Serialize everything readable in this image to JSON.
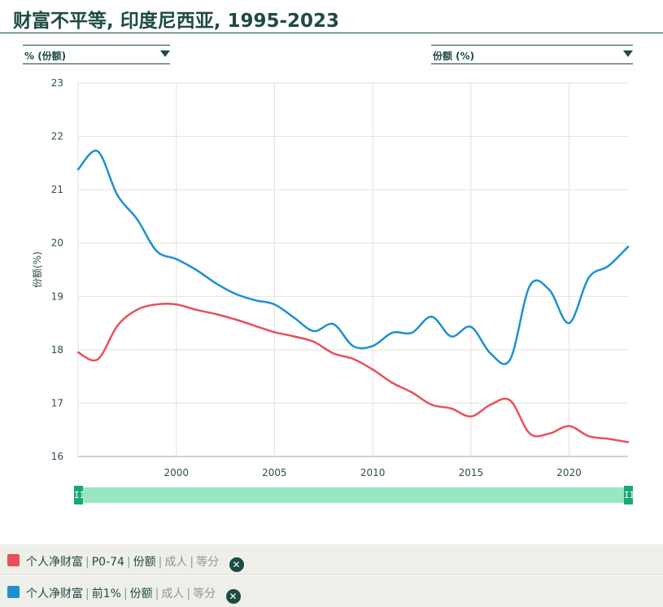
{
  "title": "财富不平等, 印度尼西亚, 1995-2023",
  "controls": {
    "unit_label": "% (份额)",
    "measure_label": "份额 (%)"
  },
  "slider": {
    "handle_glyph": "II"
  },
  "chart_data": {
    "type": "line",
    "title": "",
    "xlabel": "",
    "ylabel": "份额(%)",
    "xlim": [
      1995,
      2023
    ],
    "ylim": [
      16,
      23
    ],
    "xticks": [
      2000,
      2005,
      2010,
      2015,
      2020
    ],
    "yticks": [
      16,
      17,
      18,
      19,
      20,
      21,
      22,
      23
    ],
    "grid": true,
    "series": [
      {
        "name": "个人净财富 | P0-74 | 份额 | 成人 | 等分",
        "color": "#e8505b",
        "x": [
          1995,
          1996,
          1997,
          1998,
          1999,
          2000,
          2001,
          2002,
          2003,
          2004,
          2005,
          2006,
          2007,
          2008,
          2009,
          2010,
          2011,
          2012,
          2013,
          2014,
          2015,
          2016,
          2017,
          2018,
          2019,
          2020,
          2021,
          2022,
          2023
        ],
        "y": [
          17.95,
          17.82,
          18.45,
          18.75,
          18.85,
          18.85,
          18.75,
          18.67,
          18.57,
          18.45,
          18.33,
          18.25,
          18.15,
          17.93,
          17.83,
          17.63,
          17.38,
          17.2,
          16.97,
          16.9,
          16.75,
          16.97,
          17.05,
          16.43,
          16.43,
          16.57,
          16.38,
          16.33,
          16.27
        ]
      },
      {
        "name": "个人净财富 | 前1% | 份额 | 成人 | 等分",
        "color": "#1e90d2",
        "x": [
          1995,
          1996,
          1997,
          1998,
          1999,
          2000,
          2001,
          2002,
          2003,
          2004,
          2005,
          2006,
          2007,
          2008,
          2009,
          2010,
          2011,
          2012,
          2013,
          2014,
          2015,
          2016,
          2017,
          2018,
          2019,
          2020,
          2021,
          2022,
          2023
        ],
        "y": [
          21.38,
          21.72,
          20.9,
          20.45,
          19.85,
          19.7,
          19.5,
          19.25,
          19.05,
          18.93,
          18.85,
          18.6,
          18.35,
          18.48,
          18.07,
          18.07,
          18.32,
          18.32,
          18.62,
          18.25,
          18.43,
          17.93,
          17.82,
          19.2,
          19.12,
          18.5,
          19.35,
          19.57,
          19.93
        ]
      }
    ]
  },
  "legend": [
    {
      "color": "#e8505b",
      "parts": [
        "个人净财富",
        "P0-74",
        "份额"
      ],
      "muted_parts": [
        "成人",
        "等分"
      ],
      "close_glyph": "✕"
    },
    {
      "color": "#1e90d2",
      "parts": [
        "个人净财富",
        "前1%",
        "份额"
      ],
      "muted_parts": [
        "成人",
        "等分"
      ],
      "close_glyph": "✕"
    }
  ]
}
